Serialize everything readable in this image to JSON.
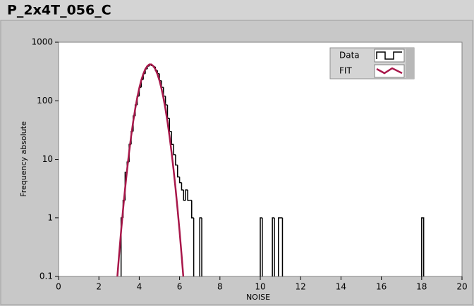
{
  "chart_data": {
    "type": "histogram",
    "title": "P_2x4T_056_C",
    "x_label": "NOISE",
    "y_label": "Frequency absolute",
    "xlim": [
      0,
      20
    ],
    "xticks": [
      0,
      2,
      4,
      6,
      8,
      10,
      12,
      14,
      16,
      18,
      20
    ],
    "ylim": [
      0.1,
      1000
    ],
    "yticks": [
      0.1,
      1,
      10,
      100,
      1000
    ],
    "y_scale": "log",
    "legend": "top-right",
    "series": [
      {
        "name": "Data",
        "color": "#000000",
        "bins": [
          3.1,
          3.2,
          3.3,
          3.4,
          3.5,
          3.6,
          3.7,
          3.8,
          3.9,
          4.0,
          4.1,
          4.2,
          4.3,
          4.4,
          4.5,
          4.6,
          4.7,
          4.8,
          4.9,
          5.0,
          5.1,
          5.2,
          5.3,
          5.4,
          5.5,
          5.6,
          5.7,
          5.8,
          5.9,
          6.0,
          6.1,
          6.2,
          6.3,
          6.4,
          6.5,
          6.6,
          6.7,
          6.8,
          6.9,
          7.0,
          7.1,
          10.0,
          10.1,
          10.6,
          10.7,
          10.9,
          11.1,
          18.0,
          18.1
        ],
        "values": [
          1,
          2,
          6,
          9,
          18,
          30,
          55,
          85,
          120,
          170,
          230,
          290,
          350,
          390,
          410,
          400,
          380,
          330,
          290,
          220,
          170,
          120,
          85,
          50,
          30,
          18,
          12,
          8,
          5,
          4,
          3,
          2,
          3,
          2,
          2,
          1,
          0,
          0,
          0,
          1,
          0,
          1,
          0,
          1,
          0,
          1,
          0,
          1
        ]
      },
      {
        "name": "FIT",
        "color": "#a8174a",
        "x": [
          2.9,
          3.0,
          3.1,
          3.2,
          3.3,
          3.4,
          3.5,
          3.6,
          3.7,
          3.8,
          3.9,
          4.0,
          4.1,
          4.2,
          4.3,
          4.4,
          4.5,
          4.6,
          4.7,
          4.8,
          4.9,
          5.0,
          5.1,
          5.2,
          5.3,
          5.4,
          5.5,
          5.6,
          5.7,
          5.8,
          5.9,
          6.0,
          6.1,
          6.2
        ],
        "values": [
          0.085,
          0.23,
          0.59,
          1.41,
          3.18,
          6.73,
          13.4,
          25.0,
          43.9,
          72.4,
          112,
          163,
          223,
          286,
          346,
          391,
          417,
          417,
          391,
          346,
          286,
          223,
          163,
          112,
          72.4,
          43.9,
          25.0,
          13.4,
          6.73,
          3.18,
          1.41,
          0.59,
          0.23,
          0.085
        ]
      }
    ]
  }
}
